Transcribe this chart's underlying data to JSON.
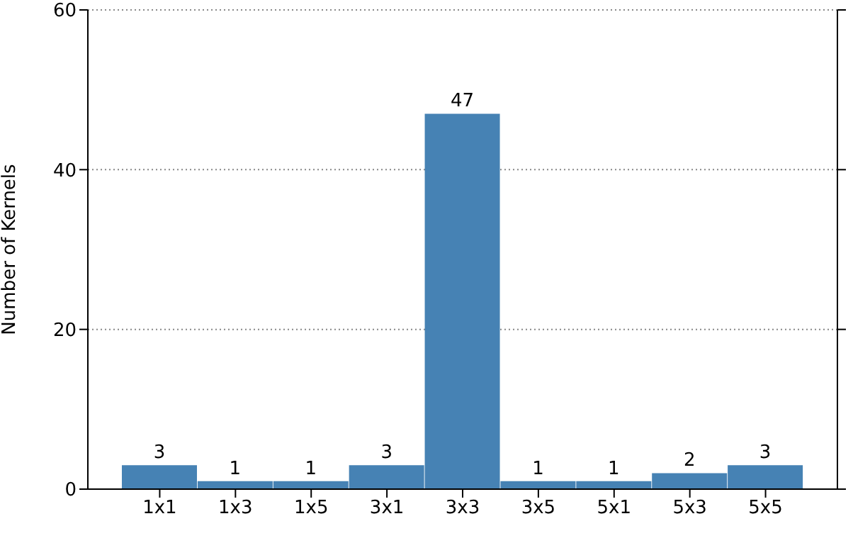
{
  "chart_data": {
    "type": "bar",
    "categories": [
      "1x1",
      "1x3",
      "1x5",
      "3x1",
      "3x3",
      "3x5",
      "5x1",
      "5x3",
      "5x5"
    ],
    "values": [
      3,
      1,
      1,
      3,
      47,
      1,
      1,
      2,
      3
    ],
    "color": "#4682b4",
    "ylabel": "Number of Kernels",
    "ylim": [
      0,
      60
    ],
    "yticks": [
      0,
      20,
      40,
      60
    ],
    "grid": "y",
    "data_labels": true
  }
}
